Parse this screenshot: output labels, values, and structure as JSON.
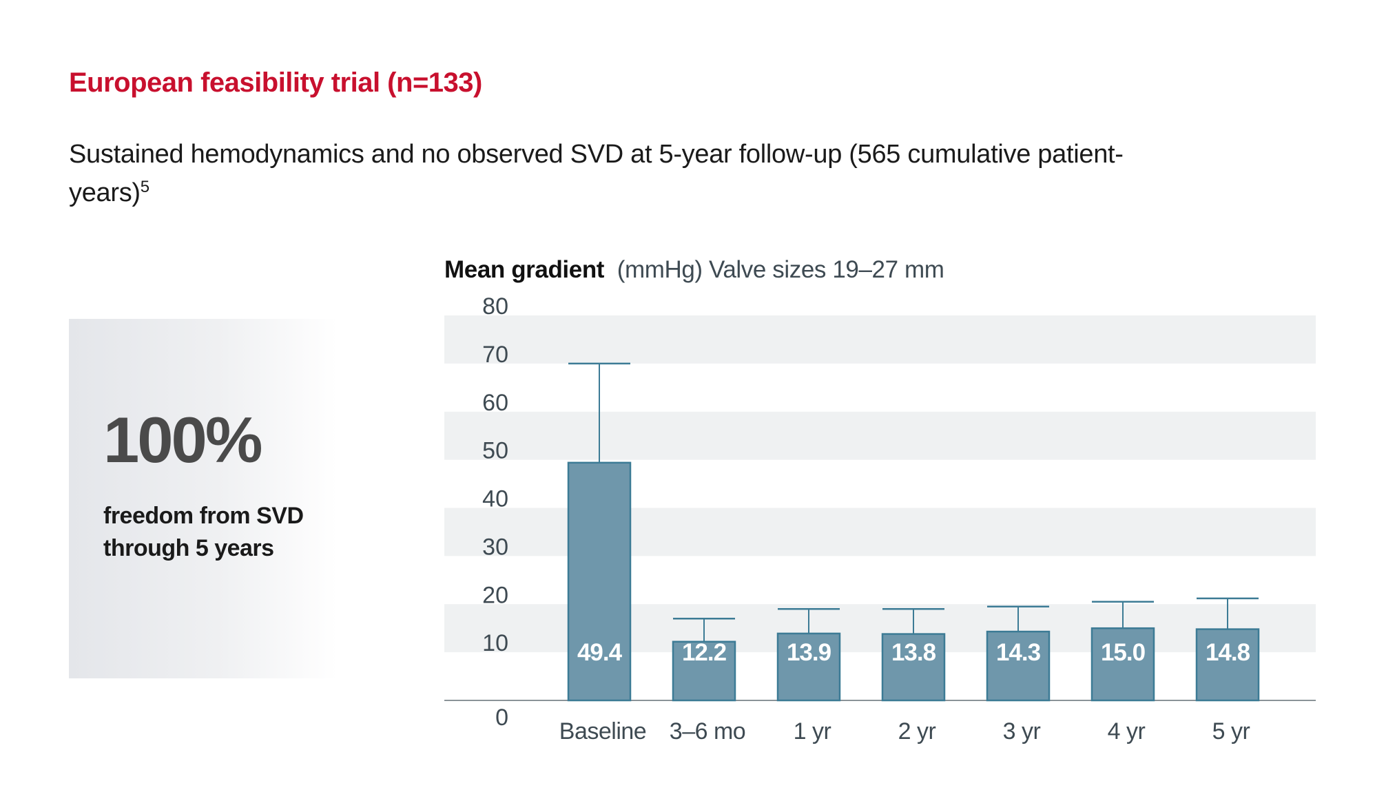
{
  "header": {
    "title": "European feasibility trial (n=133)",
    "subtitle": "Sustained hemodynamics and no observed SVD at 5-year follow-up (565 cumulative patient-years)",
    "footnote": "5"
  },
  "stat": {
    "value": "100%",
    "label": "freedom from SVD through 5 years"
  },
  "colors": {
    "accent": "#c8102e",
    "bar_fill": "#6f97ab",
    "bar_stroke": "#3c7b95",
    "band": "#eff1f2",
    "axis_text": "#3e4a52"
  },
  "chart_data": {
    "type": "bar",
    "title_bold": "Mean gradient",
    "title_rest": "(mmHg) Valve sizes 19–27 mm",
    "xlabel": "",
    "ylabel": "Mean gradient (mmHg)",
    "categories": [
      "Baseline",
      "3–6 mo",
      "1 yr",
      "2 yr",
      "3 yr",
      "4 yr",
      "5 yr"
    ],
    "values": [
      49.4,
      12.2,
      13.9,
      13.8,
      14.3,
      15.0,
      14.8
    ],
    "value_labels": [
      "49.4",
      "12.2",
      "13.9",
      "13.8",
      "14.3",
      "15.0",
      "14.8"
    ],
    "error_upper": [
      70,
      17,
      19,
      19,
      19.5,
      20.5,
      21.2
    ],
    "ylim": [
      0,
      80
    ],
    "yticks": [
      0,
      10,
      20,
      30,
      40,
      50,
      60,
      70,
      80
    ],
    "grid": "alternating horizontal bands",
    "legend": "none"
  }
}
